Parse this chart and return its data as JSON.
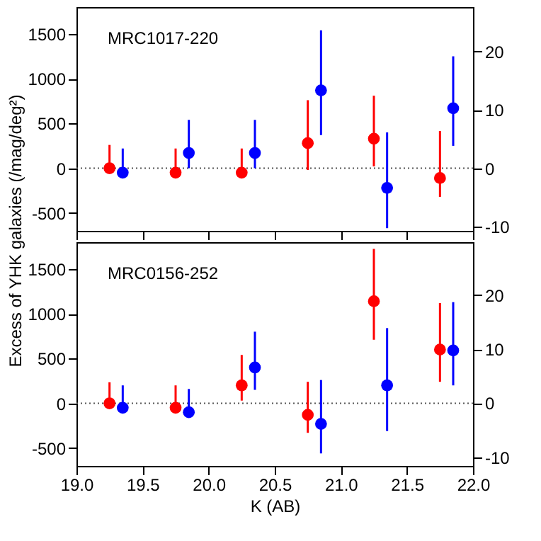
{
  "chart_data": [
    {
      "type": "scatter",
      "ylabel": "Excess of YHK galaxies (/mag/deg²)",
      "annotations": [
        "MRC1017-220"
      ],
      "marker": "circle",
      "grid": false,
      "tick_labels": "y",
      "xlim": [
        19.0,
        22.0
      ],
      "xticks": [
        {
          "value": 19.0,
          "label": null
        },
        {
          "value": 19.5,
          "label": null
        },
        {
          "value": 20.0,
          "label": null
        },
        {
          "value": 20.5,
          "label": null
        },
        {
          "value": 21.0,
          "label": null
        },
        {
          "value": 21.5,
          "label": null
        },
        {
          "value": 22.0,
          "label": null
        }
      ],
      "ylim": [
        -700,
        1800
      ],
      "yticks": [
        -500,
        0,
        500,
        1000,
        1500
      ],
      "y2lim": [
        -10.7,
        27.6
      ],
      "y2ticks": [
        -10,
        0,
        10,
        20
      ],
      "ref_lines": [
        {
          "axis": "y",
          "value": 0,
          "line_style": "dotted",
          "color": "#555555"
        }
      ],
      "series": [
        {
          "color": "#ff0000",
          "x": [
            19.25,
            19.75,
            20.25,
            20.75,
            21.25,
            21.75
          ],
          "values": [
            0,
            -50,
            -50,
            280,
            330,
            -110
          ],
          "errors": [
            [
              -50,
              260
            ],
            [
              -60,
              220
            ],
            [
              -60,
              220
            ],
            [
              -20,
              760
            ],
            [
              20,
              810
            ],
            [
              -320,
              415
            ]
          ]
        },
        {
          "color": "#0000ff",
          "x": [
            19.35,
            19.85,
            20.35,
            20.85,
            21.35,
            21.85
          ],
          "values": [
            -50,
            170,
            170,
            870,
            -220,
            670
          ],
          "errors": [
            [
              -60,
              220
            ],
            [
              0,
              540
            ],
            [
              0,
              540
            ],
            [
              370,
              1540
            ],
            [
              -670,
              400
            ],
            [
              250,
              1250
            ]
          ]
        }
      ]
    },
    {
      "type": "scatter",
      "xlabel": "K (AB)",
      "annotations": [
        "MRC0156-252"
      ],
      "marker": "circle",
      "grid": false,
      "xlim": [
        19.0,
        22.0
      ],
      "xticks": [
        {
          "value": 19.0,
          "label": "19.0"
        },
        {
          "value": 19.5,
          "label": "19.5"
        },
        {
          "value": 20.0,
          "label": "20.0"
        },
        {
          "value": 20.5,
          "label": "20.5"
        },
        {
          "value": 21.0,
          "label": "21.0"
        },
        {
          "value": 21.5,
          "label": "21.5"
        },
        {
          "value": 22.0,
          "label": "22.0"
        }
      ],
      "ylim": [
        -700,
        1800
      ],
      "yticks": [
        -500,
        0,
        500,
        1000,
        1500
      ],
      "y2lim": [
        -11.6,
        29.8
      ],
      "y2ticks": [
        -10,
        0,
        10,
        20
      ],
      "ref_lines": [
        {
          "axis": "y",
          "value": 0,
          "line_style": "dotted",
          "color": "#555555"
        }
      ],
      "series": [
        {
          "color": "#ff0000",
          "x": [
            19.25,
            19.75,
            20.25,
            20.75,
            21.25,
            21.75
          ],
          "values": [
            0,
            -50,
            200,
            -130,
            1140,
            600
          ],
          "errors": [
            [
              -40,
              235
            ],
            [
              -60,
              200
            ],
            [
              30,
              540
            ],
            [
              -330,
              240
            ],
            [
              710,
              1725
            ],
            [
              240,
              1120
            ]
          ]
        },
        {
          "color": "#0000ff",
          "x": [
            19.35,
            19.85,
            20.35,
            20.85,
            21.35,
            21.85
          ],
          "values": [
            -50,
            -100,
            400,
            -230,
            200,
            590
          ],
          "errors": [
            [
              -60,
              200
            ],
            [
              -110,
              160
            ],
            [
              150,
              800
            ],
            [
              -560,
              260
            ],
            [
              -310,
              840
            ],
            [
              200,
              1130
            ]
          ]
        }
      ]
    }
  ]
}
